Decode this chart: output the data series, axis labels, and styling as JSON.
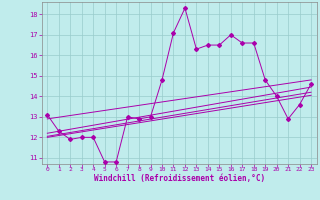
{
  "xlabel": "Windchill (Refroidissement éolien,°C)",
  "bg_color": "#c0ecec",
  "line_color": "#aa00aa",
  "grid_color": "#99cccc",
  "spine_color": "#888888",
  "ylim": [
    10.7,
    18.6
  ],
  "xlim": [
    -0.5,
    23.5
  ],
  "yticks": [
    11,
    12,
    13,
    14,
    15,
    16,
    17,
    18
  ],
  "xticks": [
    0,
    1,
    2,
    3,
    4,
    5,
    6,
    7,
    8,
    9,
    10,
    11,
    12,
    13,
    14,
    15,
    16,
    17,
    18,
    19,
    20,
    21,
    22,
    23
  ],
  "main_y": [
    13.1,
    12.3,
    11.9,
    12.0,
    12.0,
    10.8,
    10.8,
    13.0,
    12.9,
    13.0,
    14.8,
    17.1,
    18.3,
    16.3,
    16.5,
    16.5,
    17.0,
    16.6,
    16.6,
    14.8,
    14.0,
    12.9,
    13.6,
    14.6
  ],
  "trend_lines": [
    [
      12.9,
      14.8
    ],
    [
      12.2,
      14.45
    ],
    [
      12.05,
      14.2
    ],
    [
      12.0,
      14.05
    ]
  ]
}
